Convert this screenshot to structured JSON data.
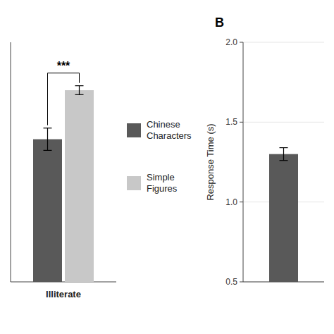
{
  "chart_data": [
    {
      "type": "bar",
      "categories": [
        "Illiterate"
      ],
      "series": [
        {
          "name": "Chinese\nCharacters",
          "color": "#595959",
          "values": [
            1.28
          ],
          "errors": [
            0.1
          ]
        },
        {
          "name": "Simple\nFigures",
          "color": "#c8c8c8",
          "values": [
            1.72
          ],
          "errors": [
            0.04
          ]
        }
      ],
      "ylim": [
        0.0,
        2.15
      ],
      "tick_labels": "x",
      "annotations": [
        "***"
      ],
      "legend": "right"
    },
    {
      "type": "bar",
      "title": "B",
      "categories": [
        null
      ],
      "series": [
        {
          "color": "#595959",
          "values": [
            1.3
          ],
          "errors": [
            0.04
          ]
        }
      ],
      "ylabel": "Response Time (s)",
      "ylim": [
        0.5,
        2.0
      ],
      "yticks": [
        0.5,
        {
          "value": 1.0,
          "label": "1.0"
        },
        1.5,
        {
          "value": 2.0,
          "label": "2.0"
        }
      ],
      "tick_labels": "y"
    }
  ]
}
